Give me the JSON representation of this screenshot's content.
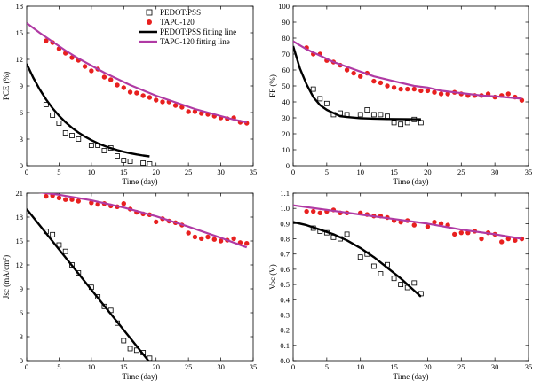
{
  "chart_data": [
    {
      "type": "scatter",
      "xlabel": "Time (day)",
      "ylabel": "PCE (%)",
      "xlim": [
        0,
        35
      ],
      "ylim": [
        0,
        18
      ],
      "xticks": [
        0,
        5,
        10,
        15,
        20,
        25,
        30,
        35
      ],
      "yticks": [
        0,
        3,
        6,
        9,
        12,
        15,
        18
      ],
      "legend_placement": "top-right",
      "legend": [
        "PEDOT:PSS",
        "TAPC-120",
        "PEDOT:PSS fitting line",
        "TAPC-120 fitting line"
      ],
      "series": [
        {
          "name": "PEDOT:PSS",
          "marker": "open-square",
          "x": [
            3,
            4,
            5,
            6,
            7,
            8,
            10,
            11,
            12,
            13,
            14,
            15,
            16,
            18,
            19
          ],
          "y": [
            6.9,
            5.7,
            4.8,
            3.7,
            3.4,
            3.0,
            2.3,
            2.3,
            1.7,
            2.0,
            1.1,
            0.6,
            0.5,
            0.3,
            0.2
          ]
        },
        {
          "name": "TAPC-120",
          "marker": "filled-circle",
          "x": [
            3,
            4,
            5,
            6,
            7,
            8,
            9,
            10,
            11,
            12,
            13,
            14,
            15,
            16,
            17,
            18,
            19,
            20,
            21,
            22,
            23,
            24,
            25,
            26,
            27,
            28,
            29,
            30,
            31,
            32,
            33,
            34
          ],
          "y": [
            14.1,
            13.9,
            13.2,
            12.7,
            12.2,
            11.9,
            11.2,
            10.7,
            10.9,
            10.0,
            9.7,
            9.1,
            8.8,
            8.3,
            8.2,
            7.9,
            7.7,
            7.4,
            7.2,
            7.2,
            6.8,
            6.6,
            6.1,
            6.1,
            5.9,
            5.8,
            5.6,
            5.4,
            5.3,
            5.4,
            4.9,
            4.8
          ]
        },
        {
          "name": "PEDOT:PSS fitting line",
          "line": true,
          "x": [
            0,
            1,
            2,
            3,
            4,
            5,
            6,
            7,
            8,
            9,
            10,
            11,
            12,
            13,
            14,
            15,
            16,
            17,
            18,
            19
          ],
          "y": [
            11.5,
            9.95,
            8.62,
            7.47,
            6.49,
            5.64,
            4.91,
            4.28,
            3.74,
            3.28,
            2.88,
            2.53,
            2.24,
            1.98,
            1.76,
            1.57,
            1.41,
            1.27,
            1.15,
            1.05
          ]
        },
        {
          "name": "TAPC-120 fitting line",
          "line": true,
          "x": [
            0,
            2,
            4,
            6,
            8,
            10,
            12,
            14,
            16,
            18,
            20,
            22,
            24,
            26,
            28,
            30,
            32,
            34
          ],
          "y": [
            16.1,
            15.0,
            14.0,
            13.0,
            12.1,
            11.3,
            10.5,
            9.8,
            9.1,
            8.5,
            7.9,
            7.4,
            6.9,
            6.4,
            6.0,
            5.6,
            5.2,
            4.9
          ]
        }
      ]
    },
    {
      "type": "scatter",
      "xlabel": "Time (day)",
      "ylabel": "FF (%)",
      "xlim": [
        0,
        35
      ],
      "ylim": [
        0,
        100
      ],
      "xticks": [
        0,
        5,
        10,
        15,
        20,
        25,
        30,
        35
      ],
      "yticks": [
        0,
        10,
        20,
        30,
        40,
        50,
        60,
        70,
        80,
        90,
        100
      ],
      "series": [
        {
          "name": "PEDOT:PSS",
          "marker": "open-square",
          "x": [
            3,
            4,
            5,
            6,
            7,
            8,
            10,
            11,
            12,
            13,
            14,
            15,
            16,
            17,
            18,
            19
          ],
          "y": [
            48,
            42,
            39,
            32,
            33,
            32,
            32,
            35,
            32,
            32,
            31,
            27,
            26,
            27,
            29,
            27
          ]
        },
        {
          "name": "TAPC-120",
          "marker": "filled-circle",
          "x": [
            2,
            3,
            4,
            5,
            6,
            7,
            8,
            9,
            10,
            11,
            12,
            13,
            14,
            15,
            16,
            17,
            18,
            19,
            20,
            21,
            22,
            23,
            24,
            25,
            26,
            27,
            28,
            29,
            30,
            31,
            32,
            33,
            34
          ],
          "y": [
            74,
            70,
            70,
            66,
            65,
            63,
            60,
            58,
            56,
            58,
            53,
            52,
            50,
            49,
            48,
            48,
            48,
            47,
            47,
            46,
            45,
            45,
            46,
            45,
            44,
            44,
            44,
            45,
            43,
            44,
            45,
            43,
            41
          ]
        },
        {
          "name": "PEDOT:PSS fitting line",
          "line": true,
          "x": [
            0,
            1,
            2,
            3,
            4,
            5,
            6,
            7,
            8,
            10,
            12,
            14,
            16,
            18,
            19
          ],
          "y": [
            75,
            61,
            51,
            43,
            38,
            35,
            33,
            31,
            30.5,
            29.8,
            29.5,
            29.3,
            29.2,
            29.1,
            29.1
          ]
        },
        {
          "name": "TAPC-120 fitting line",
          "line": true,
          "x": [
            0,
            2,
            4,
            6,
            8,
            10,
            12,
            14,
            16,
            18,
            20,
            22,
            24,
            26,
            28,
            30,
            32,
            34
          ],
          "y": [
            78,
            73,
            69,
            65,
            62,
            59,
            56,
            54,
            52,
            50,
            49,
            47,
            46,
            45,
            44,
            43.5,
            42.8,
            42
          ]
        }
      ]
    },
    {
      "type": "scatter",
      "xlabel": "Time (day)",
      "ylabel": "Jsc (mA/cm²)",
      "ylabel_main": "Jsc (mA/cm",
      "ylabel_sup": "2",
      "ylabel_end": ")",
      "xlim": [
        0,
        35
      ],
      "ylim": [
        0,
        21
      ],
      "xticks": [
        0,
        5,
        10,
        15,
        20,
        25,
        30,
        35
      ],
      "yticks": [
        0,
        3,
        6,
        9,
        12,
        15,
        18,
        21
      ],
      "series": [
        {
          "name": "PEDOT:PSS",
          "marker": "open-square",
          "x": [
            3,
            4,
            5,
            6,
            7,
            8,
            10,
            11,
            12,
            13,
            14,
            15,
            16,
            17,
            18,
            19
          ],
          "y": [
            16.2,
            15.8,
            14.5,
            13.7,
            12.0,
            11.0,
            9.2,
            8.0,
            6.8,
            6.3,
            4.7,
            2.5,
            1.5,
            1.3,
            1.0,
            0.3
          ]
        },
        {
          "name": "TAPC-120",
          "marker": "filled-circle",
          "x": [
            3,
            4,
            5,
            6,
            7,
            8,
            10,
            11,
            12,
            13,
            14,
            15,
            16,
            17,
            18,
            19,
            20,
            21,
            22,
            23,
            24,
            25,
            26,
            27,
            28,
            29,
            30,
            31,
            32,
            33,
            34
          ],
          "y": [
            20.6,
            20.7,
            20.4,
            20.2,
            20.2,
            20.0,
            19.8,
            19.6,
            19.7,
            19.4,
            19.3,
            19.7,
            19.0,
            18.6,
            18.4,
            18.3,
            17.4,
            17.8,
            17.5,
            17.3,
            17.0,
            16.0,
            15.5,
            15.3,
            15.5,
            15.2,
            15.0,
            15.1,
            15.3,
            14.8,
            14.7
          ]
        },
        {
          "name": "PEDOT:PSS fitting line",
          "line": true,
          "x": [
            0,
            19
          ],
          "y": [
            19.0,
            -0.2
          ]
        },
        {
          "name": "TAPC-120 fitting line",
          "line": true,
          "x": [
            0,
            5,
            10,
            15,
            20,
            25,
            30,
            34
          ],
          "y": [
            21.3,
            20.8,
            20.1,
            19.2,
            18.1,
            16.8,
            15.4,
            14.2
          ]
        }
      ]
    },
    {
      "type": "scatter",
      "xlabel": "Time (day)",
      "ylabel": "Voc (V)",
      "xlim": [
        0,
        35
      ],
      "ylim": [
        0,
        1.1
      ],
      "xticks": [
        0,
        5,
        10,
        15,
        20,
        25,
        30,
        35
      ],
      "yticks": [
        0.0,
        0.1,
        0.2,
        0.3,
        0.4,
        0.5,
        0.6,
        0.7,
        0.8,
        0.9,
        1.0,
        1.1
      ],
      "series": [
        {
          "name": "PEDOT:PSS",
          "marker": "open-square",
          "x": [
            3,
            4,
            5,
            6,
            7,
            8,
            10,
            11,
            12,
            13,
            14,
            15,
            16,
            17,
            18,
            19
          ],
          "y": [
            0.87,
            0.85,
            0.84,
            0.81,
            0.8,
            0.83,
            0.68,
            0.7,
            0.62,
            0.57,
            0.63,
            0.54,
            0.5,
            0.48,
            0.51,
            0.44
          ]
        },
        {
          "name": "TAPC-120",
          "marker": "filled-circle",
          "x": [
            2,
            3,
            4,
            5,
            6,
            7,
            8,
            10,
            11,
            12,
            13,
            14,
            15,
            16,
            17,
            18,
            20,
            21,
            22,
            23,
            24,
            25,
            26,
            27,
            28,
            29,
            30,
            31,
            32,
            33,
            34
          ],
          "y": [
            0.98,
            0.98,
            0.97,
            0.98,
            0.99,
            0.97,
            0.97,
            0.97,
            0.96,
            0.95,
            0.95,
            0.94,
            0.92,
            0.91,
            0.92,
            0.89,
            0.88,
            0.91,
            0.9,
            0.89,
            0.83,
            0.84,
            0.84,
            0.85,
            0.8,
            0.84,
            0.83,
            0.78,
            0.8,
            0.79,
            0.8
          ]
        },
        {
          "name": "PEDOT:PSS fitting line",
          "line": true,
          "x": [
            0,
            2,
            4,
            6,
            8,
            10,
            12,
            14,
            16,
            18,
            19
          ],
          "y": [
            0.91,
            0.89,
            0.86,
            0.83,
            0.79,
            0.74,
            0.68,
            0.61,
            0.54,
            0.46,
            0.42
          ]
        },
        {
          "name": "TAPC-120 fitting line",
          "line": true,
          "x": [
            0,
            5,
            10,
            15,
            20,
            25,
            30,
            34
          ],
          "y": [
            1.02,
            0.99,
            0.96,
            0.93,
            0.9,
            0.86,
            0.83,
            0.8
          ]
        }
      ]
    }
  ],
  "colors": {
    "pedot": "#000000",
    "tapc_marker": "#e8201f",
    "tapc_line": "#b03aa4",
    "axis": "#000000"
  }
}
